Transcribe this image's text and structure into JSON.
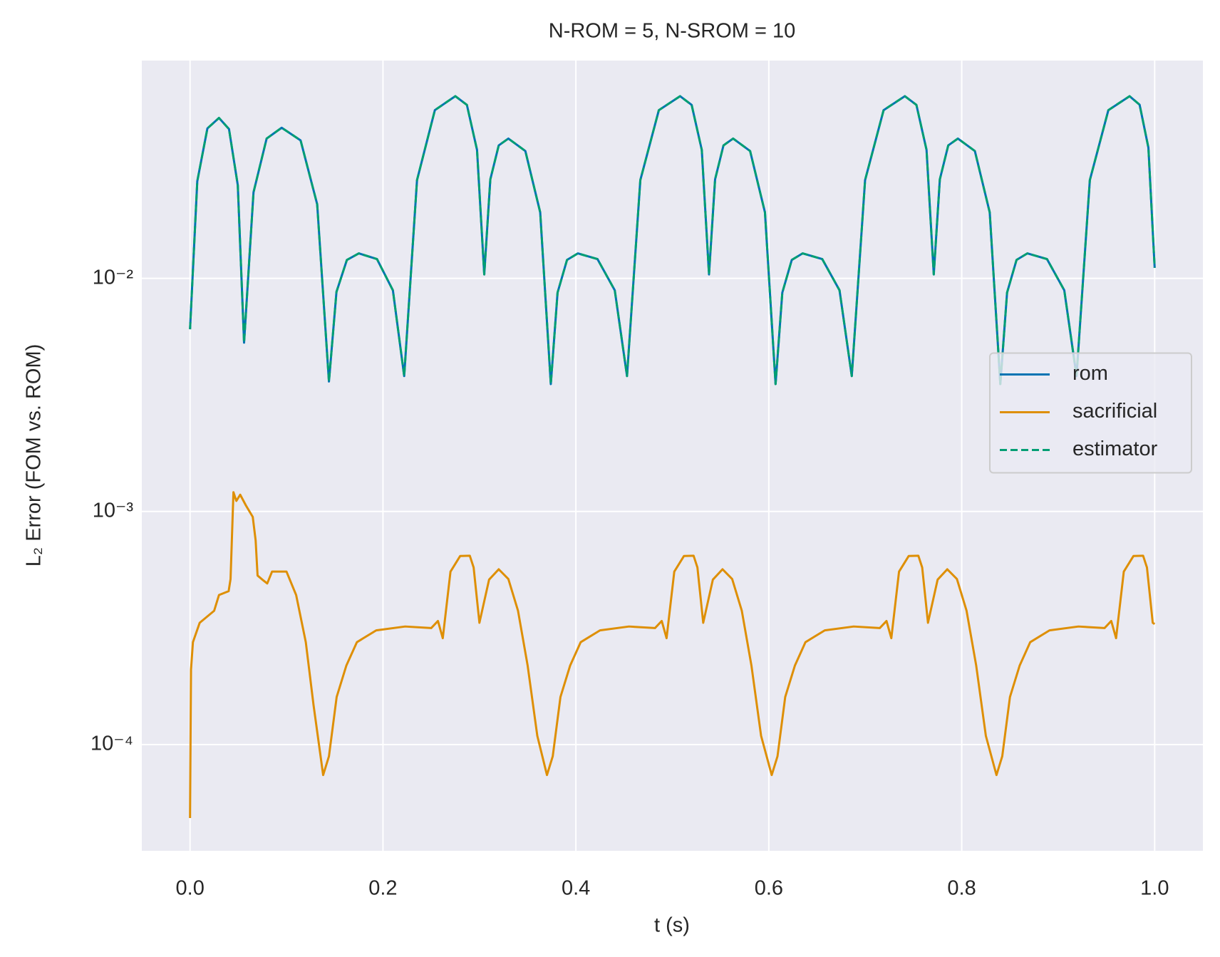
{
  "chart_data": {
    "type": "line",
    "title": "N-ROM = 5, N-SROM = 10",
    "xlabel": "t (s)",
    "ylabel": "L₂ Error (FOM vs. ROM)",
    "xlim": [
      -0.05,
      1.05
    ],
    "xticks": [
      {
        "value": 0,
        "label": "0.0"
      },
      0.2,
      0.4,
      0.6,
      0.8,
      {
        "value": 1,
        "label": "1.0"
      }
    ],
    "ylim": [
      3.5e-05,
      0.086
    ],
    "yticks": [
      {
        "value": 0.0001,
        "label": "10⁻⁴"
      },
      {
        "value": 0.001,
        "label": "10⁻³"
      },
      {
        "value": 0.01,
        "label": "10⁻²"
      }
    ],
    "log_y": true,
    "grid": true,
    "legend": "center right",
    "series": [
      {
        "name": "rom",
        "color": "#0173b2",
        "dash": false,
        "x": [
          0,
          0.0075,
          0.018,
          0.03,
          0.0404,
          0.0495,
          0.056,
          0.0658,
          0.0794,
          0.095,
          0.1146,
          0.1318,
          0.144,
          0.1518,
          0.1626,
          0.175,
          0.1938,
          0.2103,
          0.222,
          0.2353,
          0.2538,
          0.275,
          0.287,
          0.2975,
          0.305,
          0.3113,
          0.32,
          0.33,
          0.3476,
          0.363,
          0.374,
          0.381,
          0.3908,
          0.402,
          0.4224,
          0.4403,
          0.453,
          0.4668,
          0.486,
          0.508,
          0.52,
          0.5305,
          0.538,
          0.5443,
          0.553,
          0.563,
          0.5806,
          0.596,
          0.607,
          0.614,
          0.6238,
          0.635,
          0.6554,
          0.6733,
          0.686,
          0.6998,
          0.719,
          0.741,
          0.753,
          0.7635,
          0.771,
          0.7773,
          0.786,
          0.796,
          0.8136,
          0.829,
          0.84,
          0.847,
          0.8568,
          0.868,
          0.8884,
          0.9063,
          0.919,
          0.9328,
          0.952,
          0.974,
          0.9844,
          0.9935,
          1.0
        ],
        "values": [
          0.00605,
          0.0261,
          0.044,
          0.0488,
          0.0437,
          0.0251,
          0.0053,
          0.0234,
          0.0398,
          0.0443,
          0.0391,
          0.0208,
          0.00361,
          0.00875,
          0.012,
          0.0128,
          0.0121,
          0.00889,
          0.00381,
          0.0264,
          0.0527,
          0.0605,
          0.0555,
          0.0356,
          0.0104,
          0.0266,
          0.0372,
          0.0398,
          0.0352,
          0.0192,
          0.00352,
          0.00869,
          0.012,
          0.0128,
          0.0121,
          0.00889,
          0.00381,
          0.0264,
          0.0527,
          0.0605,
          0.0555,
          0.0356,
          0.0104,
          0.0266,
          0.0372,
          0.0398,
          0.0352,
          0.0192,
          0.00352,
          0.00869,
          0.012,
          0.0128,
          0.0121,
          0.00889,
          0.00381,
          0.0264,
          0.0527,
          0.0605,
          0.0555,
          0.0356,
          0.0104,
          0.0266,
          0.0372,
          0.0398,
          0.0352,
          0.0192,
          0.00352,
          0.00869,
          0.012,
          0.0128,
          0.0121,
          0.00889,
          0.00381,
          0.0264,
          0.0527,
          0.0605,
          0.0556,
          0.0364,
          0.0111
        ]
      },
      {
        "name": "sacrificial",
        "color": "#de8f05",
        "dash": false,
        "x": [
          0,
          0.001,
          0.003,
          0.01,
          0.025,
          0.03,
          0.04,
          0.042,
          0.045,
          0.048,
          0.052,
          0.058,
          0.065,
          0.068,
          0.07,
          0.075,
          0.08,
          0.085,
          0.1,
          0.11,
          0.12,
          0.128,
          0.138,
          0.144,
          0.152,
          0.162,
          0.173,
          0.193,
          0.223,
          0.25,
          0.257,
          0.262,
          0.27,
          0.28,
          0.29,
          0.294,
          0.3,
          0.31,
          0.32,
          0.33,
          0.34,
          0.35,
          0.36,
          0.37,
          0.376,
          0.384,
          0.394,
          0.405,
          0.425,
          0.455,
          0.482,
          0.489,
          0.494,
          0.502,
          0.512,
          0.522,
          0.526,
          0.532,
          0.542,
          0.552,
          0.562,
          0.572,
          0.582,
          0.592,
          0.603,
          0.609,
          0.617,
          0.627,
          0.638,
          0.658,
          0.688,
          0.715,
          0.722,
          0.727,
          0.735,
          0.745,
          0.755,
          0.759,
          0.765,
          0.775,
          0.785,
          0.795,
          0.805,
          0.815,
          0.825,
          0.836,
          0.842,
          0.85,
          0.86,
          0.871,
          0.891,
          0.921,
          0.948,
          0.955,
          0.96,
          0.968,
          0.978,
          0.988,
          0.992,
          0.998,
          1.0
        ],
        "values": [
          4.84e-05,
          0.00021,
          0.000275,
          0.000333,
          0.000375,
          0.000438,
          0.000455,
          0.000513,
          0.00121,
          0.00111,
          0.00118,
          0.00106,
          0.000948,
          0.000752,
          0.000531,
          0.00051,
          0.000491,
          0.000552,
          0.000552,
          0.000438,
          0.000275,
          0.000148,
          7.4e-05,
          8.91e-05,
          0.00016,
          0.000218,
          0.000275,
          0.000309,
          0.000321,
          0.000316,
          0.000339,
          0.000286,
          0.000552,
          0.000644,
          0.000646,
          0.000575,
          0.000333,
          0.00051,
          0.000565,
          0.000513,
          0.000375,
          0.000218,
          0.000109,
          7.4e-05,
          8.91e-05,
          0.00016,
          0.000218,
          0.000275,
          0.000309,
          0.000321,
          0.000316,
          0.000339,
          0.000286,
          0.000552,
          0.000644,
          0.000646,
          0.000575,
          0.000333,
          0.00051,
          0.000565,
          0.000513,
          0.000375,
          0.000218,
          0.000109,
          7.4e-05,
          8.91e-05,
          0.00016,
          0.000218,
          0.000275,
          0.000309,
          0.000321,
          0.000316,
          0.000339,
          0.000286,
          0.000552,
          0.000644,
          0.000646,
          0.000575,
          0.000333,
          0.00051,
          0.000565,
          0.000513,
          0.000375,
          0.000218,
          0.000109,
          7.4e-05,
          8.91e-05,
          0.00016,
          0.000218,
          0.000275,
          0.000309,
          0.000321,
          0.000316,
          0.000339,
          0.000286,
          0.000552,
          0.000644,
          0.000646,
          0.000575,
          0.000333,
          0.000329
        ]
      },
      {
        "name": "estimator",
        "color": "#029e73",
        "dash": true,
        "x": [
          0,
          0.0075,
          0.018,
          0.03,
          0.0404,
          0.0495,
          0.056,
          0.0658,
          0.0794,
          0.095,
          0.1146,
          0.1318,
          0.144,
          0.1518,
          0.1626,
          0.175,
          0.1938,
          0.2103,
          0.222,
          0.2353,
          0.2538,
          0.275,
          0.287,
          0.2975,
          0.305,
          0.3113,
          0.32,
          0.33,
          0.3476,
          0.363,
          0.374,
          0.381,
          0.3908,
          0.402,
          0.4224,
          0.4403,
          0.453,
          0.4668,
          0.486,
          0.508,
          0.52,
          0.5305,
          0.538,
          0.5443,
          0.553,
          0.563,
          0.5806,
          0.596,
          0.607,
          0.614,
          0.6238,
          0.635,
          0.6554,
          0.6733,
          0.686,
          0.6998,
          0.719,
          0.741,
          0.753,
          0.7635,
          0.771,
          0.7773,
          0.786,
          0.796,
          0.8136,
          0.829,
          0.84,
          0.847,
          0.8568,
          0.868,
          0.8884,
          0.9063,
          0.919,
          0.9328,
          0.952,
          0.974,
          0.9844,
          0.9935,
          1.0
        ],
        "values": [
          0.00605,
          0.0261,
          0.044,
          0.0488,
          0.0437,
          0.0251,
          0.0053,
          0.0234,
          0.0398,
          0.0443,
          0.0391,
          0.0208,
          0.00361,
          0.00875,
          0.012,
          0.0128,
          0.0121,
          0.00889,
          0.00381,
          0.0264,
          0.0527,
          0.0605,
          0.0555,
          0.0356,
          0.0104,
          0.0266,
          0.0372,
          0.0398,
          0.0352,
          0.0192,
          0.00352,
          0.00869,
          0.012,
          0.0128,
          0.0121,
          0.00889,
          0.00381,
          0.0264,
          0.0527,
          0.0605,
          0.0555,
          0.0356,
          0.0104,
          0.0266,
          0.0372,
          0.0398,
          0.0352,
          0.0192,
          0.00352,
          0.00869,
          0.012,
          0.0128,
          0.0121,
          0.00889,
          0.00381,
          0.0264,
          0.0527,
          0.0605,
          0.0555,
          0.0356,
          0.0104,
          0.0266,
          0.0372,
          0.0398,
          0.0352,
          0.0192,
          0.00352,
          0.00869,
          0.012,
          0.0128,
          0.0121,
          0.00889,
          0.00381,
          0.0264,
          0.0527,
          0.0605,
          0.0556,
          0.0364,
          0.0111
        ]
      }
    ]
  }
}
